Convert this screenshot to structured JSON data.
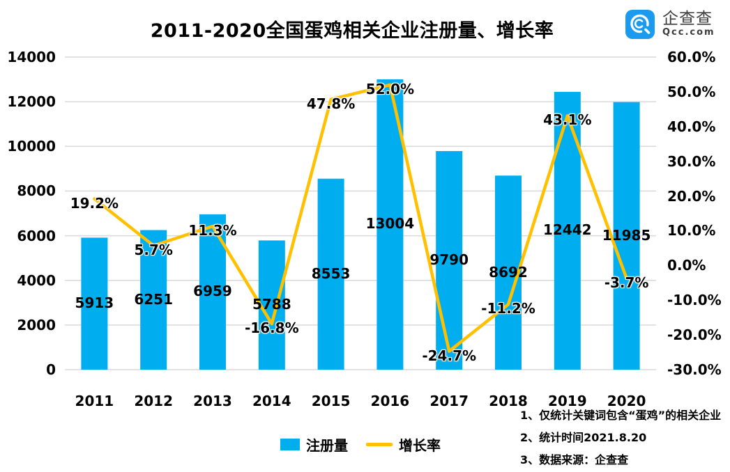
{
  "title": "2011-2020全国蛋鸡相关企业注册量、增长率",
  "logo": {
    "name": "企查查",
    "domain": "Qcc.com",
    "brand_color": "#1b9bf0",
    "text_color": "#3b3b3b"
  },
  "colors": {
    "bar": "#00aeef",
    "line": "#ffc000",
    "gridline": "#d9d9d9",
    "text": "#000000"
  },
  "chart_data": {
    "type": "combo-bar-line",
    "title": "2011-2020全国蛋鸡相关企业注册量、增长率",
    "categories": [
      "2011",
      "2012",
      "2013",
      "2014",
      "2015",
      "2016",
      "2017",
      "2018",
      "2019",
      "2020"
    ],
    "series": [
      {
        "name": "注册量",
        "type": "bar",
        "axis": "left",
        "color": "#00aeef",
        "values": [
          5913,
          6251,
          6959,
          5788,
          8553,
          13004,
          9790,
          8692,
          12442,
          11985
        ]
      },
      {
        "name": "增长率",
        "type": "line",
        "axis": "right",
        "color": "#ffc000",
        "values": [
          19.2,
          5.7,
          11.3,
          -16.8,
          47.8,
          52.0,
          -24.7,
          -11.2,
          43.1,
          -3.7
        ],
        "labels": [
          "19.2%",
          "5.7%",
          "11.3%",
          "-16.8%",
          "47.8%",
          "52.0%",
          "-24.7%",
          "-11.2%",
          "43.1%",
          "-3.7%"
        ]
      }
    ],
    "left_axis": {
      "min": 0,
      "max": 14000,
      "step": 2000,
      "ticks": [
        "14000",
        "12000",
        "10000",
        "8000",
        "6000",
        "4000",
        "2000",
        "0"
      ]
    },
    "right_axis": {
      "min": -30,
      "max": 60,
      "step": 10,
      "ticks": [
        "60.0%",
        "50.0%",
        "40.0%",
        "30.0%",
        "20.0%",
        "10.0%",
        "0.0%",
        "-10.0%",
        "-20.0%",
        "-30.0%"
      ]
    },
    "grid": "horizontal",
    "legend_position": "bottom"
  },
  "notes": [
    "1、仅统计关键词包含“蛋鸡”的相关企业",
    "2、统计时间2021.8.20",
    "3、数据来源：企查查"
  ]
}
